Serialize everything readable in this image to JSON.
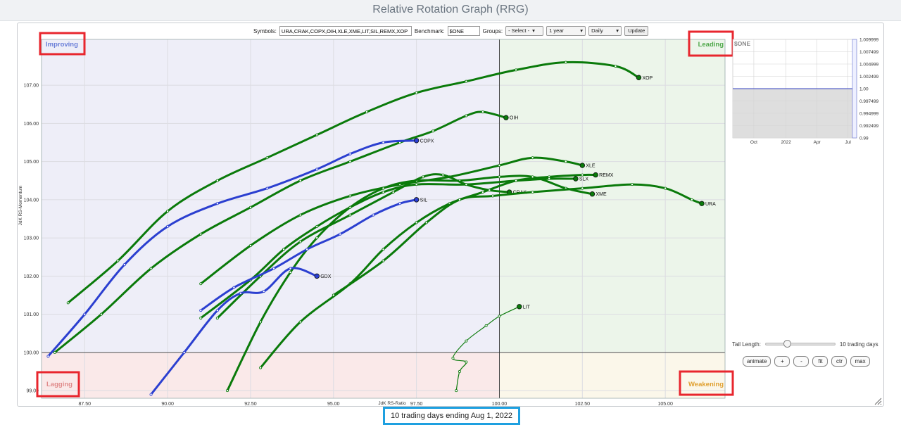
{
  "page_title": "Relative Rotation Graph (RRG)",
  "toolbar": {
    "symbols_label": "Symbols:",
    "symbols_value": "URA,CRAK,COPX,OIH,XLE,XME,LIT,SIL,REMX,XOP",
    "benchmark_label": "Benchmark:",
    "benchmark_value": "$ONE",
    "groups_label": "Groups:",
    "groups_value": "- Select -",
    "period_value": "1 year",
    "frequency_value": "Daily",
    "update_label": "Update"
  },
  "quadrants": {
    "improving": "Improving",
    "leading": "Leading",
    "lagging": "Lagging",
    "weakening": "Weakening"
  },
  "colors": {
    "green_series": "#0a7a0a",
    "blue_series": "#2b3fd0",
    "highlight_red": "#e8262e",
    "caption_border": "#1ea0e0"
  },
  "chart_data": [
    {
      "type": "scatter",
      "xlabel": "JdK RS-Ratio",
      "ylabel": "JdK RS-Momentum",
      "xlim": [
        86.2,
        106.8
      ],
      "ylim": [
        98.8,
        108.2
      ],
      "x_ticks": [
        "87.50",
        "90.00",
        "92.50",
        "95.00",
        "97.50",
        "100.00",
        "102.50",
        "105.00"
      ],
      "y_ticks": [
        "99.00",
        "100.00",
        "101.00",
        "102.00",
        "103.00",
        "104.00",
        "105.00",
        "106.00",
        "107.00"
      ],
      "grid": true,
      "series": [
        {
          "name": "XOP",
          "color": "green",
          "points": [
            [
              87.0,
              101.3
            ],
            [
              88.5,
              102.4
            ],
            [
              90.0,
              103.7
            ],
            [
              91.5,
              104.5
            ],
            [
              93.0,
              105.1
            ],
            [
              94.5,
              105.7
            ],
            [
              96.0,
              106.3
            ],
            [
              97.5,
              106.8
            ],
            [
              99.0,
              107.1
            ],
            [
              100.5,
              107.4
            ],
            [
              102.0,
              107.6
            ],
            [
              103.5,
              107.5
            ],
            [
              104.2,
              107.2
            ]
          ]
        },
        {
          "name": "OIH",
          "color": "green",
          "points": [
            [
              86.6,
              100.0
            ],
            [
              88.0,
              101.0
            ],
            [
              89.5,
              102.2
            ],
            [
              91.0,
              103.1
            ],
            [
              92.5,
              103.8
            ],
            [
              94.0,
              104.5
            ],
            [
              95.5,
              105.0
            ],
            [
              97.0,
              105.5
            ],
            [
              98.0,
              105.8
            ],
            [
              99.0,
              106.2
            ],
            [
              99.5,
              106.3
            ],
            [
              100.2,
              106.15
            ]
          ]
        },
        {
          "name": "COPX",
          "color": "blue",
          "points": [
            [
              86.4,
              99.9
            ],
            [
              87.5,
              101.0
            ],
            [
              88.7,
              102.3
            ],
            [
              90.0,
              103.3
            ],
            [
              91.5,
              103.9
            ],
            [
              93.0,
              104.3
            ],
            [
              94.5,
              104.8
            ],
            [
              95.5,
              105.2
            ],
            [
              96.5,
              105.5
            ],
            [
              97.5,
              105.55
            ]
          ]
        },
        {
          "name": "XLE",
          "color": "green",
          "points": [
            [
              91.0,
              101.8
            ],
            [
              92.5,
              102.8
            ],
            [
              94.0,
              103.6
            ],
            [
              95.5,
              104.1
            ],
            [
              97.0,
              104.4
            ],
            [
              98.5,
              104.6
            ],
            [
              100.0,
              104.9
            ],
            [
              101.0,
              105.1
            ],
            [
              102.0,
              105.0
            ],
            [
              102.5,
              104.9
            ]
          ]
        },
        {
          "name": "REMX",
          "color": "green",
          "points": [
            [
              92.8,
              99.6
            ],
            [
              94.0,
              100.8
            ],
            [
              95.5,
              101.8
            ],
            [
              96.5,
              102.7
            ],
            [
              97.5,
              103.4
            ],
            [
              98.5,
              103.9
            ],
            [
              99.5,
              104.2
            ],
            [
              100.5,
              104.5
            ],
            [
              101.5,
              104.6
            ],
            [
              102.5,
              104.65
            ],
            [
              102.9,
              104.65
            ]
          ]
        },
        {
          "name": "SLX",
          "color": "green",
          "points": [
            [
              91.0,
              100.9
            ],
            [
              92.5,
              101.9
            ],
            [
              93.5,
              102.7
            ],
            [
              94.5,
              103.3
            ],
            [
              95.5,
              103.8
            ],
            [
              96.5,
              104.2
            ],
            [
              97.5,
              104.4
            ],
            [
              99.0,
              104.4
            ],
            [
              100.5,
              104.5
            ],
            [
              101.5,
              104.55
            ],
            [
              102.3,
              104.55
            ]
          ]
        },
        {
          "name": "XME",
          "color": "green",
          "points": [
            [
              91.8,
              99.0
            ],
            [
              92.8,
              100.8
            ],
            [
              93.7,
              102.1
            ],
            [
              94.5,
              103.0
            ],
            [
              95.5,
              103.8
            ],
            [
              96.5,
              104.3
            ],
            [
              97.5,
              104.5
            ],
            [
              98.8,
              104.5
            ],
            [
              100.0,
              104.6
            ],
            [
              101.0,
              104.6
            ],
            [
              102.0,
              104.3
            ],
            [
              102.8,
              104.15
            ]
          ]
        },
        {
          "name": "CRAK",
          "color": "green",
          "points": [
            [
              91.5,
              100.9
            ],
            [
              92.8,
              102.0
            ],
            [
              94.0,
              102.9
            ],
            [
              95.5,
              103.6
            ],
            [
              96.8,
              104.2
            ],
            [
              97.7,
              104.6
            ],
            [
              98.3,
              104.65
            ],
            [
              99.0,
              104.4
            ],
            [
              99.7,
              104.25
            ],
            [
              100.3,
              104.2
            ]
          ]
        },
        {
          "name": "URA",
          "color": "green",
          "points": [
            [
              95.0,
              101.5
            ],
            [
              96.5,
              102.4
            ],
            [
              97.8,
              103.4
            ],
            [
              98.8,
              104.0
            ],
            [
              99.8,
              104.1
            ],
            [
              101.0,
              104.2
            ],
            [
              102.5,
              104.3
            ],
            [
              104.0,
              104.4
            ],
            [
              105.0,
              104.3
            ],
            [
              105.8,
              104.0
            ],
            [
              106.1,
              103.9
            ]
          ]
        },
        {
          "name": "SIL",
          "color": "blue",
          "points": [
            [
              91.0,
              101.1
            ],
            [
              92.0,
              101.7
            ],
            [
              93.2,
              102.2
            ],
            [
              94.2,
              102.7
            ],
            [
              95.2,
              103.1
            ],
            [
              96.2,
              103.6
            ],
            [
              97.0,
              103.9
            ],
            [
              97.5,
              104.0
            ]
          ]
        },
        {
          "name": "GDX",
          "color": "blue",
          "points": [
            [
              89.5,
              98.9
            ],
            [
              90.5,
              100.0
            ],
            [
              91.5,
              101.1
            ],
            [
              92.2,
              101.55
            ],
            [
              92.9,
              101.6
            ],
            [
              93.7,
              102.2
            ],
            [
              94.5,
              102.0
            ]
          ]
        },
        {
          "name": "LIT",
          "color": "green",
          "thin": true,
          "points": [
            [
              98.7,
              99.0
            ],
            [
              98.8,
              99.5
            ],
            [
              99.0,
              99.75
            ],
            [
              98.6,
              99.85
            ],
            [
              99.0,
              100.3
            ],
            [
              99.6,
              100.7
            ],
            [
              100.0,
              100.95
            ],
            [
              100.6,
              101.2
            ]
          ]
        }
      ]
    },
    {
      "type": "line",
      "title": "$ONE",
      "x_ticks": [
        "Oct",
        "2022",
        "Apr",
        "Jul"
      ],
      "y_ticks": [
        "1.009999",
        "1.007499",
        "1.004999",
        "1.002499",
        "1.00",
        "0.997499",
        "0.994999",
        "0.992499",
        "0.99"
      ],
      "ylim": [
        0.99,
        1.01
      ],
      "series": [
        {
          "name": "$ONE",
          "values": [
            1.0,
            1.0,
            1.0,
            1.0,
            1.0
          ]
        }
      ]
    }
  ],
  "controls": {
    "tail_label": "Tail Length:",
    "tail_value": "10 trading days",
    "tail_fraction": 0.25,
    "buttons": [
      "animate",
      "+",
      "-",
      "fit",
      "ctr",
      "max"
    ]
  },
  "caption": "10 trading days ending Aug 1, 2022"
}
